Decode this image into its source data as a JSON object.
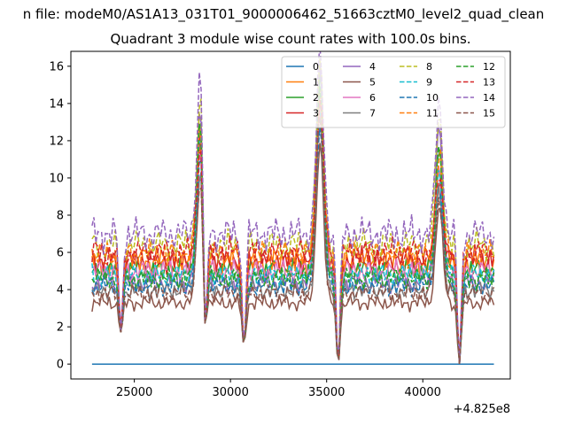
{
  "chart_data": {
    "type": "line",
    "suptitle": "n file: modeM0/AS1A13_031T01_9000006462_51663cztM0_level2_quad_clean",
    "title": "Quadrant 3 module wise count rates with 100.0s bins.",
    "xlabel": "",
    "ylabel": "",
    "x_offset_label": "+4.825e8",
    "xlim": [
      21700,
      44550
    ],
    "ylim": [
      -0.8,
      16.8
    ],
    "x_ticks": [
      25000,
      30000,
      35000,
      40000
    ],
    "y_ticks": [
      0,
      2,
      4,
      6,
      8,
      10,
      12,
      14,
      16
    ],
    "x_tick_labels": [
      "25000",
      "30000",
      "35000",
      "40000"
    ],
    "y_tick_labels": [
      "0",
      "2",
      "4",
      "6",
      "8",
      "10",
      "12",
      "14",
      "16"
    ],
    "grid": false,
    "legend": {
      "location": "top-right",
      "columns": 4
    },
    "x_start": 22800,
    "x_end": 43700,
    "series": [
      {
        "name": "0",
        "color": "#1f77b4",
        "dash": "solid",
        "base": 0.0
      },
      {
        "name": "1",
        "color": "#ff7f0e",
        "dash": "solid",
        "base": 5.5
      },
      {
        "name": "2",
        "color": "#2ca02c",
        "dash": "solid",
        "base": 5.0
      },
      {
        "name": "3",
        "color": "#d62728",
        "dash": "solid",
        "base": 5.6
      },
      {
        "name": "4",
        "color": "#9467bd",
        "dash": "solid",
        "base": 4.4
      },
      {
        "name": "5",
        "color": "#8c564b",
        "dash": "solid",
        "base": 3.3
      },
      {
        "name": "6",
        "color": "#e377c2",
        "dash": "solid",
        "base": 5.0
      },
      {
        "name": "7",
        "color": "#7f7f7f",
        "dash": "solid",
        "base": 4.0
      },
      {
        "name": "8",
        "color": "#bcbd22",
        "dash": "dashed",
        "base": 6.4
      },
      {
        "name": "9",
        "color": "#17becf",
        "dash": "dashed",
        "base": 4.8
      },
      {
        "name": "10",
        "color": "#1f77b4",
        "dash": "dashed",
        "base": 4.2
      },
      {
        "name": "11",
        "color": "#ff7f0e",
        "dash": "dashed",
        "base": 5.9
      },
      {
        "name": "12",
        "color": "#2ca02c",
        "dash": "dashed",
        "base": 4.6
      },
      {
        "name": "13",
        "color": "#d62728",
        "dash": "dashed",
        "base": 6.0
      },
      {
        "name": "14",
        "color": "#9467bd",
        "dash": "dashed",
        "base": 7.0
      },
      {
        "name": "15",
        "color": "#8c564b",
        "dash": "dashed",
        "base": 3.8
      }
    ],
    "features": [
      {
        "kind": "peak",
        "x": 28450,
        "heights": [
          0,
          12.5,
          13.5,
          12.0,
          14.2,
          10.5,
          12.0,
          11.0,
          14.5,
          12.5,
          11.5,
          13.0,
          13.8,
          12.2,
          16.0,
          10.0
        ]
      },
      {
        "kind": "peak",
        "x": 34650,
        "heights": [
          0,
          14.0,
          15.5,
          13.5,
          16.5,
          12.0,
          14.0,
          13.0,
          16.0,
          14.0,
          13.0,
          14.5,
          15.0,
          14.0,
          16.5,
          13.5
        ]
      },
      {
        "kind": "peak",
        "x": 40850,
        "heights": [
          0,
          10.5,
          12.0,
          9.8,
          13.0,
          8.5,
          10.0,
          9.5,
          13.5,
          10.5,
          9.5,
          11.0,
          11.5,
          10.0,
          14.0,
          9.0
        ]
      },
      {
        "kind": "dip",
        "x": 28700,
        "depth": 2.0
      },
      {
        "kind": "dip",
        "x": 30700,
        "depth": 1.0
      },
      {
        "kind": "dip",
        "x": 35600,
        "depth": 0.0
      },
      {
        "kind": "dip",
        "x": 41900,
        "depth": 0.0
      },
      {
        "kind": "dip",
        "x": 24300,
        "depth": 1.7
      }
    ]
  }
}
